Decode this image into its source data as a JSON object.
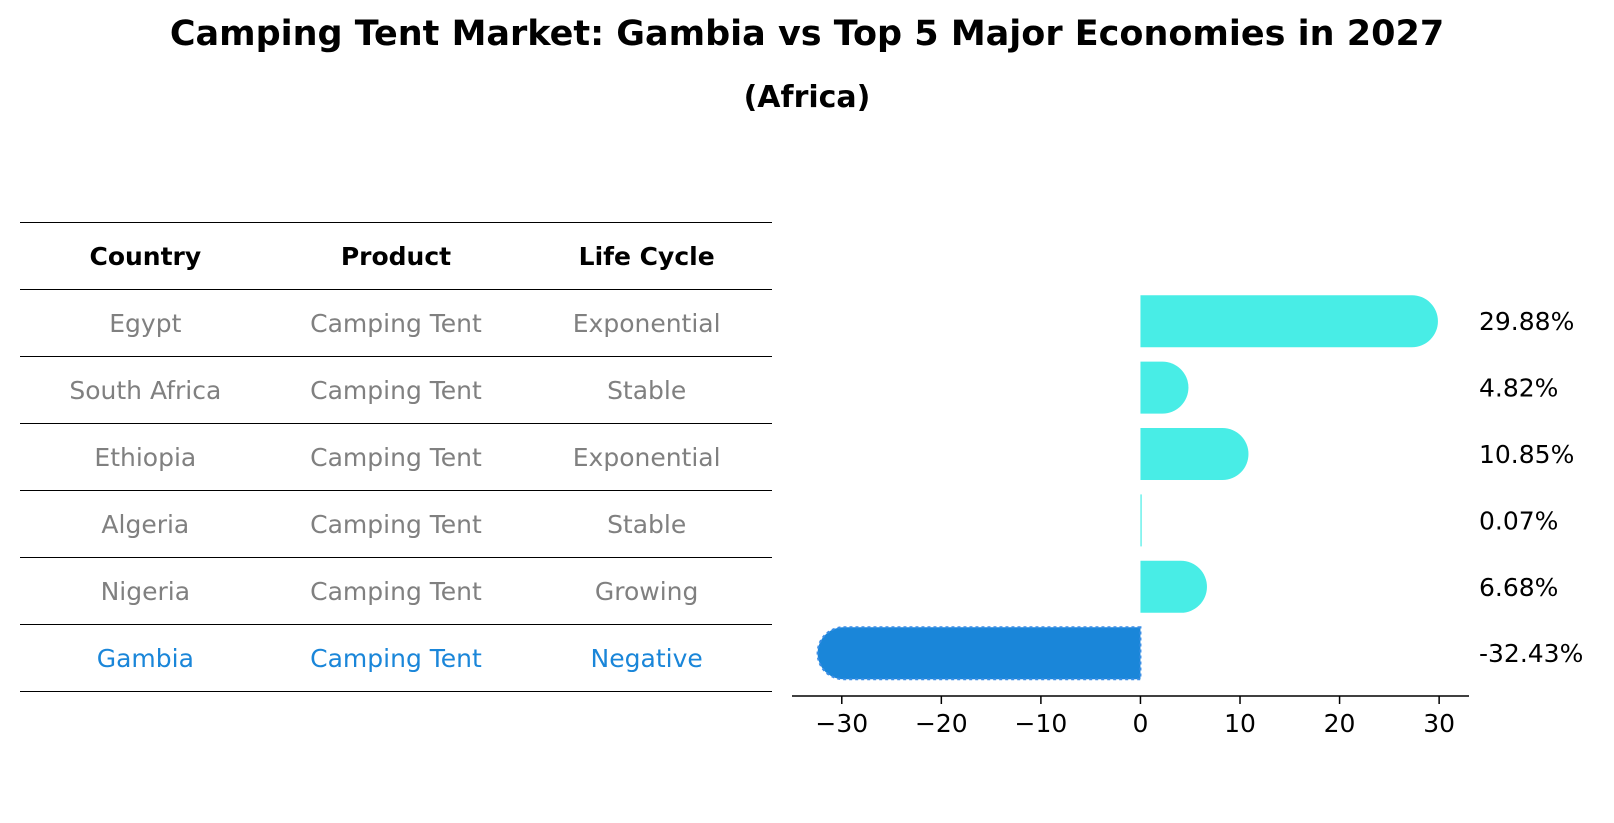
{
  "title": "Camping Tent Market: Gambia vs Top 5 Major Economies in 2027",
  "subtitle": "(Africa)",
  "table": {
    "headers": [
      "Country",
      "Product",
      "Life Cycle"
    ],
    "rows": [
      {
        "country": "Egypt",
        "product": "Camping Tent",
        "life_cycle": "Exponential"
      },
      {
        "country": "South Africa",
        "product": "Camping Tent",
        "life_cycle": "Stable"
      },
      {
        "country": "Ethiopia",
        "product": "Camping Tent",
        "life_cycle": "Exponential"
      },
      {
        "country": "Algeria",
        "product": "Camping Tent",
        "life_cycle": "Stable"
      },
      {
        "country": "Nigeria",
        "product": "Camping Tent",
        "life_cycle": "Growing"
      },
      {
        "country": "Gambia",
        "product": "Camping Tent",
        "life_cycle": "Negative"
      }
    ],
    "highlight_color": "#1a86d9",
    "text_color": "#808080"
  },
  "chart_data": {
    "type": "bar",
    "orientation": "horizontal",
    "categories": [
      "Egypt",
      "South Africa",
      "Ethiopia",
      "Algeria",
      "Nigeria",
      "Gambia"
    ],
    "values": [
      29.88,
      4.82,
      10.85,
      0.07,
      6.68,
      -32.43
    ],
    "value_labels": [
      "29.88%",
      "4.82%",
      "10.85%",
      "0.07%",
      "6.68%",
      "-32.43%"
    ],
    "xlim": [
      -35,
      33
    ],
    "xticks": [
      -30,
      -20,
      -10,
      0,
      10,
      20,
      30
    ],
    "xtick_labels": [
      "−30",
      "−20",
      "−10",
      "0",
      "10",
      "20",
      "30"
    ],
    "grid": false,
    "colors": {
      "positive": "#48ede6",
      "highlight": "#1a86d9"
    }
  }
}
